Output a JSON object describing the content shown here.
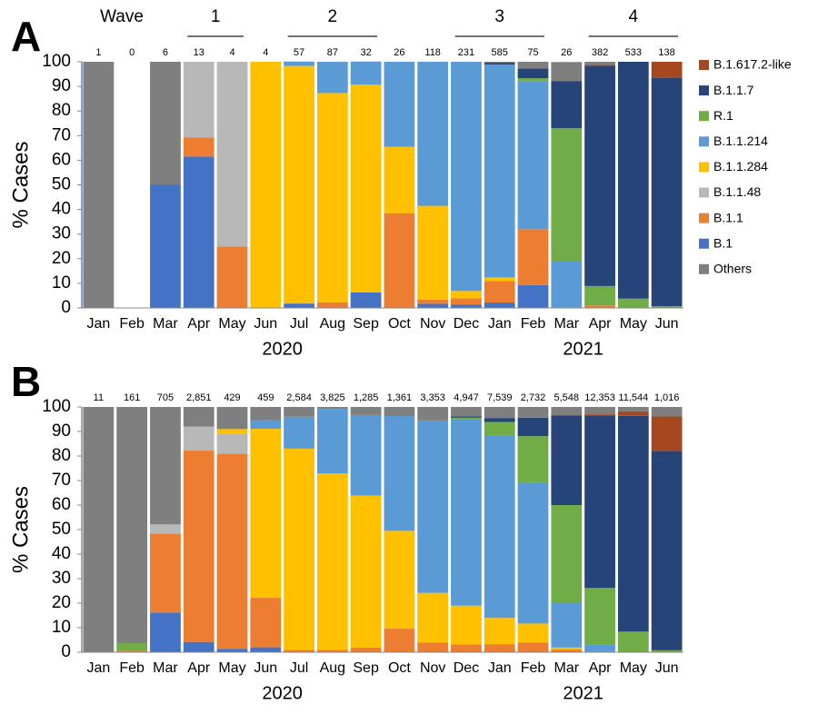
{
  "chart_data": [
    {
      "type": "stacked_bar",
      "panel_label": "A",
      "y_label": "% Cases",
      "wave_label": "Wave",
      "waves": [
        "1",
        "2",
        "3",
        "4"
      ],
      "categories": [
        "Jan",
        "Feb",
        "Mar",
        "Apr",
        "May",
        "Jun",
        "Jul",
        "Aug",
        "Sep",
        "Oct",
        "Nov",
        "Dec",
        "Jan",
        "Feb",
        "Mar",
        "Apr",
        "May",
        "Jun"
      ],
      "years": [
        "2020",
        "2021"
      ],
      "n": [
        1,
        0,
        6,
        13,
        4,
        4,
        57,
        87,
        32,
        26,
        118,
        231,
        585,
        75,
        26,
        382,
        533,
        138
      ],
      "ylim": [
        0,
        100
      ],
      "yticks": [
        0,
        10,
        20,
        30,
        40,
        50,
        60,
        70,
        80,
        90,
        100
      ],
      "legend": true,
      "series": [
        {
          "name": "B.1",
          "color": "#4472c4",
          "values": [
            0,
            0,
            50,
            61.5,
            0,
            0,
            1.8,
            0,
            6.3,
            0,
            1.7,
            1.3,
            2.2,
            9.3,
            0,
            0,
            0,
            0
          ]
        },
        {
          "name": "B.1.1",
          "color": "#ed7d31",
          "values": [
            0,
            0,
            0,
            7.7,
            25,
            0,
            0,
            2.3,
            0,
            38.5,
            1.7,
            2.6,
            8.7,
            22.7,
            0,
            1.0,
            0,
            0
          ]
        },
        {
          "name": "B.1.1.48",
          "color": "#b8b8b8",
          "values": [
            0,
            0,
            0,
            30.8,
            75,
            0,
            0,
            0,
            0,
            0,
            0,
            0,
            0,
            0,
            0,
            0,
            0,
            0
          ]
        },
        {
          "name": "B.1.1.284",
          "color": "#ffc000",
          "values": [
            0,
            0,
            0,
            0,
            0,
            100,
            96.5,
            85,
            84.4,
            26.9,
            38.1,
            3.0,
            1.5,
            0,
            0,
            0,
            0,
            0
          ]
        },
        {
          "name": "B.1.1.214",
          "color": "#5b9bd5",
          "values": [
            0,
            0,
            0,
            0,
            0,
            0,
            1.8,
            12.7,
            9.4,
            34.6,
            58.5,
            93.1,
            86.5,
            60,
            19.2,
            0,
            0,
            0
          ]
        },
        {
          "name": "R.1",
          "color": "#70ad47",
          "values": [
            0,
            0,
            0,
            0,
            0,
            0,
            0,
            0,
            0,
            0,
            0,
            0,
            0,
            1.3,
            53.8,
            7.9,
            3.8,
            0.7
          ]
        },
        {
          "name": "B.1.1.7",
          "color": "#264478",
          "values": [
            0,
            0,
            0,
            0,
            0,
            0,
            0,
            0,
            0,
            0,
            0,
            0,
            0.7,
            4,
            19.2,
            89.5,
            96.2,
            92.8
          ]
        },
        {
          "name": "B.1.617.2-like",
          "color": "#a5471f",
          "values": [
            0,
            0,
            0,
            0,
            0,
            0,
            0,
            0,
            0,
            0,
            0,
            0,
            0,
            0,
            0,
            0.3,
            0,
            6.5
          ]
        },
        {
          "name": "Others",
          "color": "#7f7f7f",
          "values": [
            100,
            0,
            50,
            0,
            0,
            0,
            0,
            0,
            0,
            0,
            0,
            0,
            0.4,
            2.7,
            7.7,
            1.3,
            0,
            0
          ]
        }
      ]
    },
    {
      "type": "stacked_bar",
      "panel_label": "B",
      "y_label": "% Cases",
      "categories": [
        "Jan",
        "Feb",
        "Mar",
        "Apr",
        "May",
        "Jun",
        "Jul",
        "Aug",
        "Sep",
        "Oct",
        "Nov",
        "Dec",
        "Jan",
        "Feb",
        "Mar",
        "Apr",
        "May",
        "Jun"
      ],
      "years": [
        "2020",
        "2021"
      ],
      "n": [
        11,
        161,
        705,
        2851,
        429,
        459,
        2584,
        3825,
        1285,
        1361,
        3353,
        4947,
        7539,
        2732,
        5548,
        12353,
        11544,
        1016
      ],
      "n_labels": [
        "11",
        "161",
        "705",
        "2,851",
        "429",
        "459",
        "2,584",
        "3,825",
        "1,285",
        "1,361",
        "3,353",
        "4,947",
        "7,539",
        "2,732",
        "5,548",
        "12,353",
        "11,544",
        "1,016"
      ],
      "ylim": [
        0,
        100
      ],
      "yticks": [
        0,
        10,
        20,
        30,
        40,
        50,
        60,
        70,
        80,
        90,
        100
      ],
      "legend": false,
      "series": [
        {
          "color": "#4472c4",
          "values": [
            0,
            0,
            16.2,
            4.2,
            1.4,
            2,
            0,
            0,
            0,
            0,
            0,
            0,
            0,
            0,
            0,
            0,
            0,
            0
          ]
        },
        {
          "color": "#ed7d31",
          "values": [
            0,
            0.6,
            32.2,
            78,
            79.5,
            20.2,
            1,
            1,
            1.9,
            9.6,
            3.9,
            3.2,
            3.3,
            4,
            1.1,
            0,
            0,
            0
          ]
        },
        {
          "color": "#b8b8b8",
          "values": [
            0,
            0,
            3.7,
            9.8,
            8,
            0,
            0,
            0,
            0,
            0,
            0,
            0,
            0,
            0,
            0,
            0,
            0,
            0
          ]
        },
        {
          "color": "#ffc000",
          "values": [
            0,
            0,
            0,
            0,
            2.1,
            68.9,
            82,
            71.9,
            62,
            39.9,
            20.3,
            15.8,
            10.7,
            7.7,
            0.8,
            0,
            0,
            0
          ]
        },
        {
          "color": "#5b9bd5",
          "values": [
            0,
            0,
            0,
            0,
            0,
            3.5,
            13,
            26.3,
            32.8,
            46.8,
            70.3,
            76.2,
            74.5,
            57.6,
            18.1,
            3.2,
            0,
            0
          ]
        },
        {
          "color": "#70ad47",
          "values": [
            0,
            3.1,
            0,
            0,
            0,
            0,
            0,
            0,
            0,
            0,
            0,
            0.4,
            5.4,
            18.8,
            40,
            23,
            8.4,
            0.8
          ]
        },
        {
          "color": "#264478",
          "values": [
            0,
            0,
            0,
            0,
            0,
            0,
            0,
            0,
            0,
            0,
            0,
            0.6,
            1.6,
            7.5,
            36.6,
            70.4,
            88,
            81.3
          ]
        },
        {
          "color": "#a5471f",
          "values": [
            0,
            0,
            0,
            0,
            0,
            0,
            0,
            0,
            0,
            0,
            0,
            0,
            0,
            0,
            0,
            0.4,
            1.8,
            14
          ]
        },
        {
          "color": "#7f7f7f",
          "values": [
            100,
            96.3,
            47.9,
            8,
            9,
            5.4,
            4,
            0.8,
            3.3,
            3.7,
            5.5,
            3.8,
            4.5,
            4.4,
            3.4,
            3,
            1.8,
            3.9
          ]
        }
      ]
    }
  ]
}
